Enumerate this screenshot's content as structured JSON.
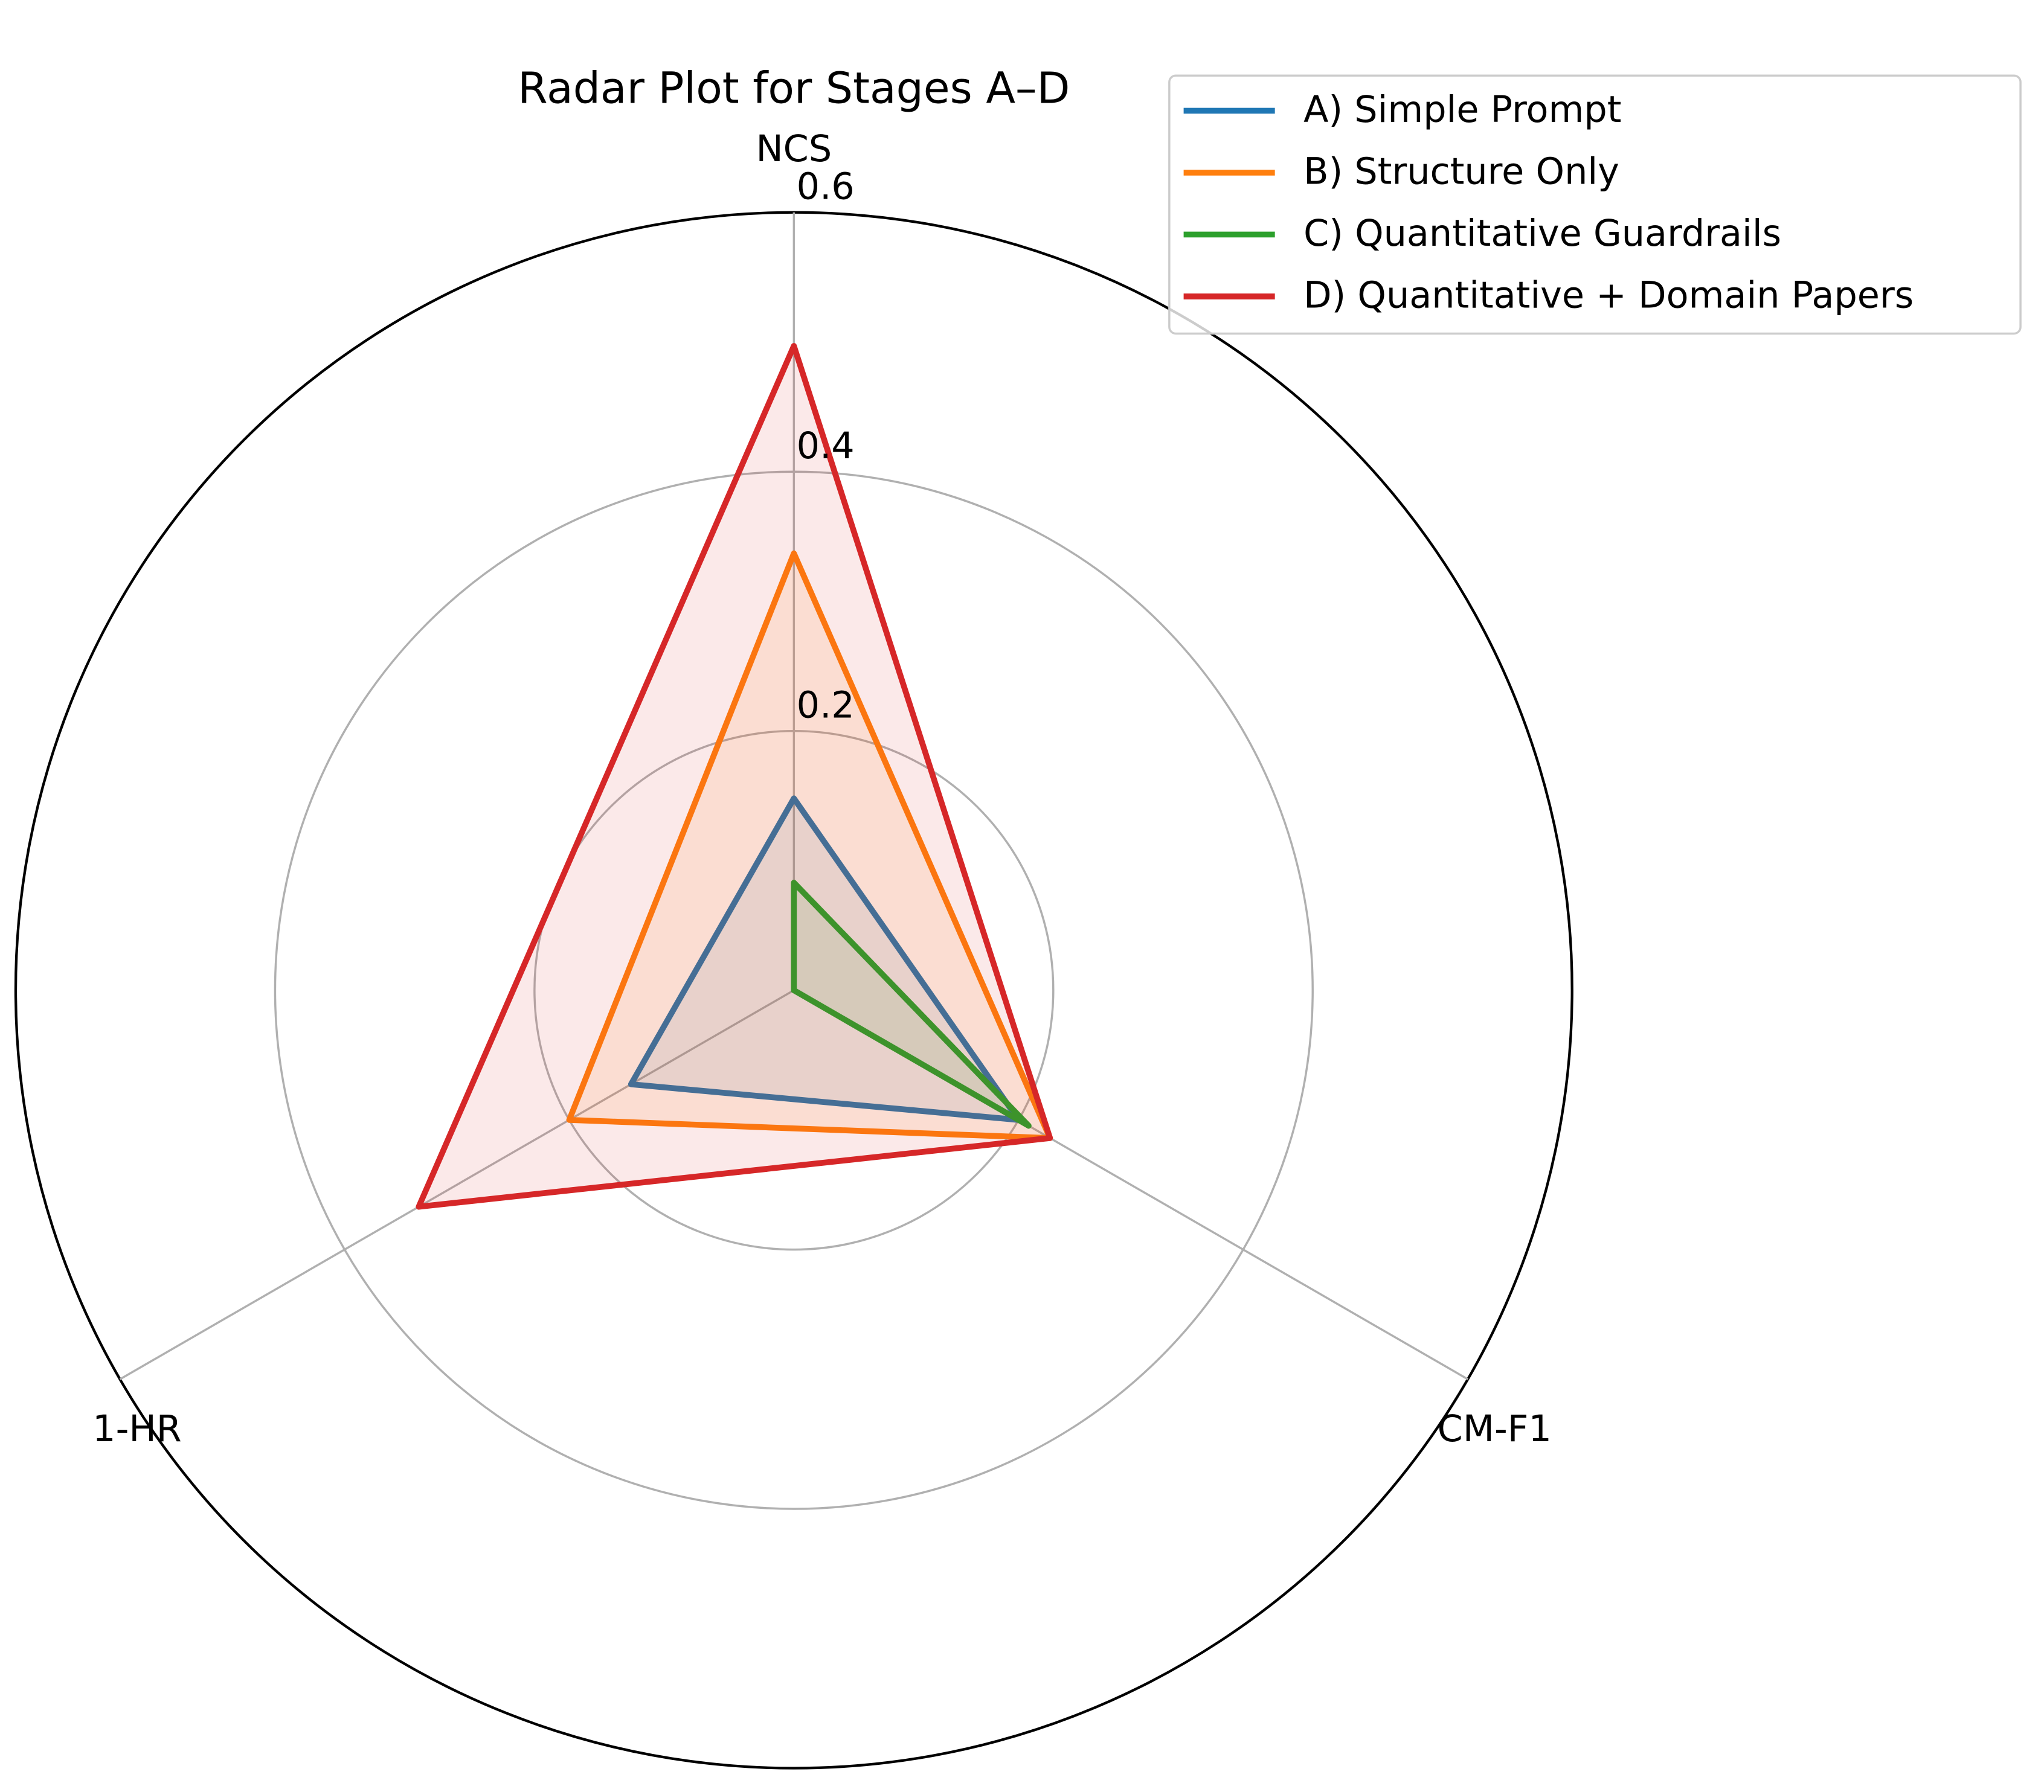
{
  "chart_data": {
    "type": "radar",
    "title": "Radar Plot for Stages A–D",
    "categories": [
      "NCS",
      "CM-F1",
      "1-HR"
    ],
    "series": [
      {
        "name": "A) Simple Prompt",
        "color": "#1f77b4",
        "values": [
          0.148,
          0.2,
          0.145
        ]
      },
      {
        "name": "B) Structure Only",
        "color": "#ff7f0e",
        "values": [
          0.337,
          0.228,
          0.2
        ]
      },
      {
        "name": "C) Quantitative Guardrails",
        "color": "#2ca02c",
        "values": [
          0.083,
          0.209,
          0
        ]
      },
      {
        "name": "D) Quantitative + Domain Papers",
        "color": "#d62728",
        "values": [
          0.497,
          0.228,
          0.334
        ]
      }
    ],
    "ylim": [
      0,
      0.6
    ],
    "yticks": [
      0.2,
      0.4,
      0.6
    ],
    "grid": true,
    "legend": "upper right"
  }
}
